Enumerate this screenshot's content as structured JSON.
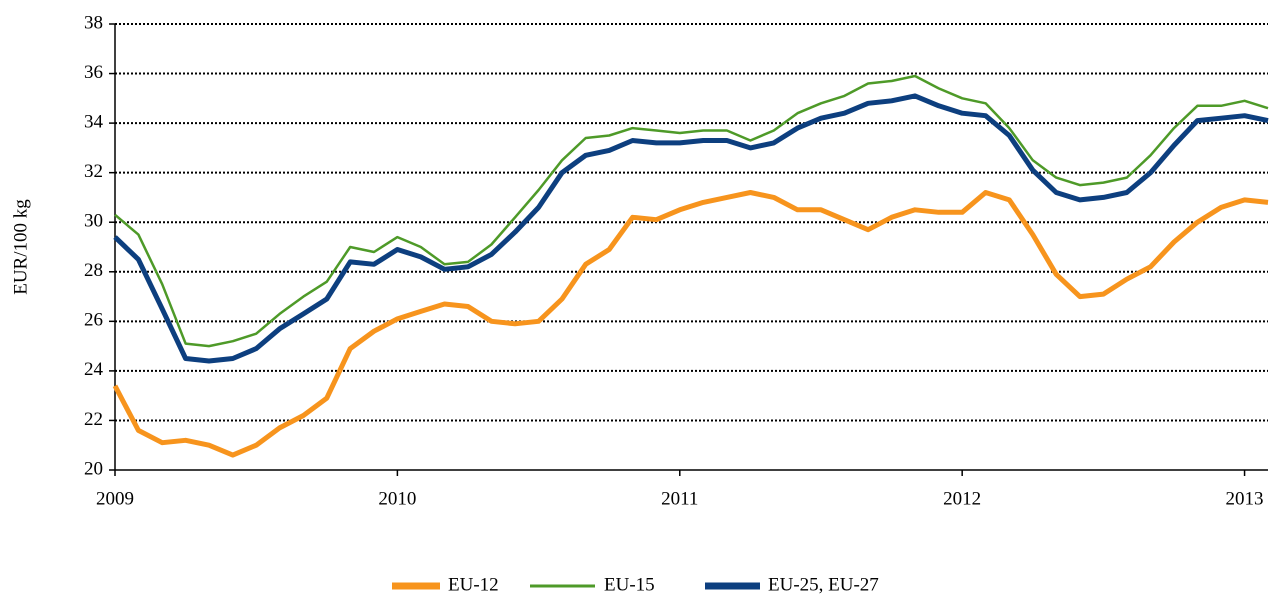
{
  "chart_data": {
    "type": "line",
    "ylabel": "EUR/100 kg",
    "x": [
      2009,
      2009.083,
      2009.167,
      2009.25,
      2009.333,
      2009.417,
      2009.5,
      2009.583,
      2009.667,
      2009.75,
      2009.833,
      2009.917,
      2010,
      2010.083,
      2010.167,
      2010.25,
      2010.333,
      2010.417,
      2010.5,
      2010.583,
      2010.667,
      2010.75,
      2010.833,
      2010.917,
      2011,
      2011.083,
      2011.167,
      2011.25,
      2011.333,
      2011.417,
      2011.5,
      2011.583,
      2011.667,
      2011.75,
      2011.833,
      2011.917,
      2012,
      2012.083,
      2012.167,
      2012.25,
      2012.333,
      2012.417,
      2012.5,
      2012.583,
      2012.667,
      2012.75,
      2012.833,
      2012.917,
      2013,
      2013.083
    ],
    "xlim": [
      2009,
      2013.083
    ],
    "xticks": [
      2009,
      2010,
      2011,
      2012,
      2013
    ],
    "ylim": [
      20,
      38
    ],
    "yticks": [
      20,
      22,
      24,
      26,
      28,
      30,
      32,
      34,
      36,
      38
    ],
    "grid": true,
    "legend": "bottom",
    "series": [
      {
        "name": "EU-12",
        "color": "#f7941d",
        "values": [
          23.4,
          21.6,
          21.1,
          21.2,
          21.0,
          20.6,
          21.0,
          21.7,
          22.2,
          22.9,
          24.9,
          25.6,
          26.1,
          26.4,
          26.7,
          26.6,
          26.0,
          25.9,
          26.0,
          26.9,
          28.3,
          28.9,
          30.2,
          30.1,
          30.5,
          30.8,
          31.0,
          31.2,
          31.0,
          30.5,
          30.5,
          30.1,
          29.7,
          30.2,
          30.5,
          30.4,
          30.4,
          31.2,
          30.9,
          29.5,
          27.9,
          27.0,
          27.1,
          27.7,
          28.2,
          29.2,
          30.0,
          30.6,
          30.9,
          30.8
        ]
      },
      {
        "name": "EU-15",
        "color": "#4e9a28",
        "values": [
          30.3,
          29.5,
          27.5,
          25.1,
          25.0,
          25.2,
          25.5,
          26.3,
          27.0,
          27.6,
          29.0,
          28.8,
          29.4,
          29.0,
          28.3,
          28.4,
          29.1,
          30.2,
          31.3,
          32.5,
          33.4,
          33.5,
          33.8,
          33.7,
          33.6,
          33.7,
          33.7,
          33.3,
          33.7,
          34.4,
          34.8,
          35.1,
          35.6,
          35.7,
          35.9,
          35.4,
          35.0,
          34.8,
          33.8,
          32.5,
          31.8,
          31.5,
          31.6,
          31.8,
          32.7,
          33.8,
          34.7,
          34.7,
          34.9,
          34.6
        ]
      },
      {
        "name": "EU-25, EU-27",
        "color": "#0d3f7f",
        "values": [
          29.4,
          28.5,
          26.5,
          24.5,
          24.4,
          24.5,
          24.9,
          25.7,
          26.3,
          26.9,
          28.4,
          28.3,
          28.9,
          28.6,
          28.1,
          28.2,
          28.7,
          29.6,
          30.6,
          32.0,
          32.7,
          32.9,
          33.3,
          33.2,
          33.2,
          33.3,
          33.3,
          33.0,
          33.2,
          33.8,
          34.2,
          34.4,
          34.8,
          34.9,
          35.1,
          34.7,
          34.4,
          34.3,
          33.5,
          32.1,
          31.2,
          30.9,
          31.0,
          31.2,
          32.0,
          33.1,
          34.1,
          34.2,
          34.3,
          34.1
        ]
      }
    ]
  }
}
